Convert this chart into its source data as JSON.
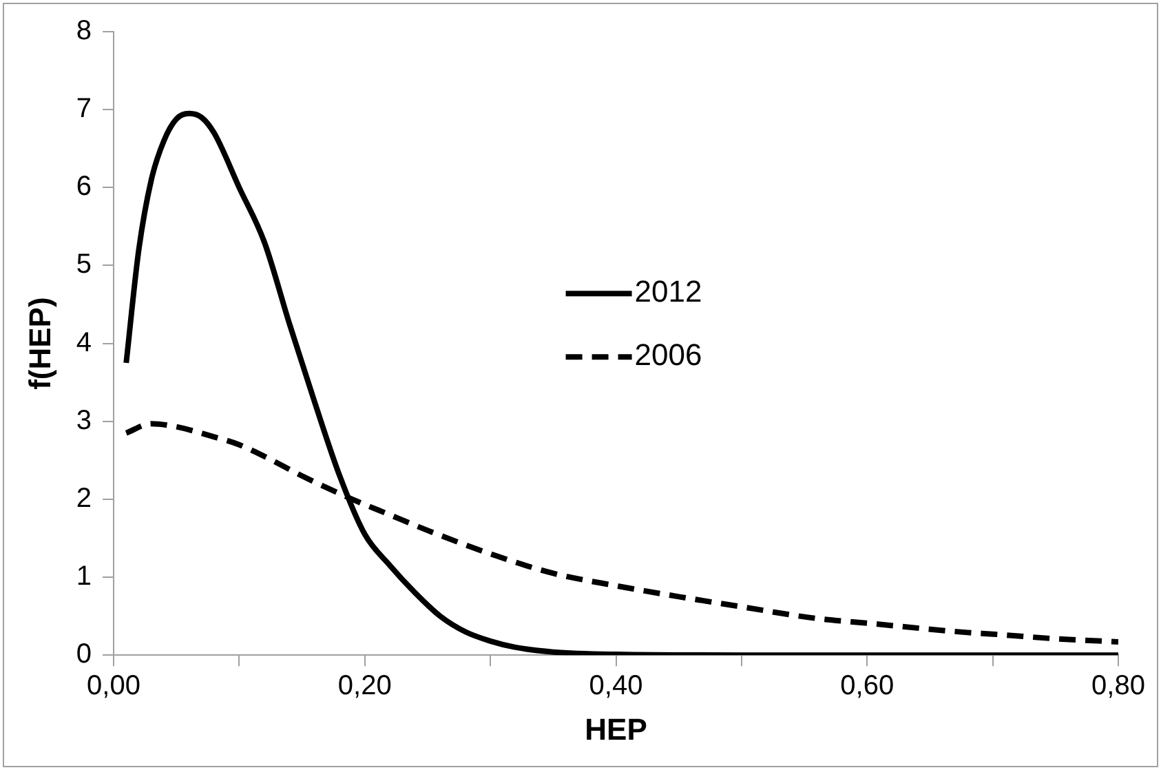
{
  "chart_data": {
    "type": "line",
    "xlabel": "HEP",
    "ylabel": "f(HEP)",
    "xlim": [
      0,
      0.8
    ],
    "xticks": [
      {
        "value": 0,
        "label": "0,00"
      },
      {
        "value": 0.1,
        "label": null
      },
      {
        "value": 0.2,
        "label": "0,20"
      },
      {
        "value": 0.3,
        "label": null
      },
      {
        "value": 0.4,
        "label": "0,40"
      },
      {
        "value": 0.5,
        "label": null
      },
      {
        "value": 0.6,
        "label": "0,60"
      },
      {
        "value": 0.7,
        "label": null
      },
      {
        "value": 0.8,
        "label": "0,80"
      }
    ],
    "ylim": [
      0,
      8
    ],
    "yticks": [
      0,
      1,
      2,
      3,
      4,
      5,
      6,
      7,
      8
    ],
    "grid": false,
    "legend": "center",
    "marker": "none",
    "series": [
      {
        "name": "2012",
        "color": "#000000",
        "line_style": "solid",
        "x": [
          0.01,
          0.02,
          0.03,
          0.04,
          0.05,
          0.06,
          0.07,
          0.08,
          0.1,
          0.12,
          0.14,
          0.16,
          0.18,
          0.2,
          0.22,
          0.24,
          0.26,
          0.28,
          0.3,
          0.32,
          0.35,
          0.4,
          0.5,
          0.8
        ],
        "values": [
          3.75,
          5.2,
          6.1,
          6.6,
          6.88,
          6.95,
          6.9,
          6.7,
          6.0,
          5.3,
          4.25,
          3.25,
          2.3,
          1.55,
          1.15,
          0.8,
          0.5,
          0.3,
          0.18,
          0.1,
          0.04,
          0.01,
          0,
          0
        ]
      },
      {
        "name": "2006",
        "color": "#000000",
        "line_style": "dashed",
        "x": [
          0.01,
          0.03,
          0.05,
          0.08,
          0.1,
          0.12,
          0.15,
          0.19,
          0.22,
          0.25,
          0.3,
          0.35,
          0.4,
          0.45,
          0.5,
          0.56,
          0.6,
          0.68,
          0.7,
          0.75,
          0.8
        ],
        "values": [
          2.85,
          2.97,
          2.93,
          2.8,
          2.7,
          2.55,
          2.3,
          2.0,
          1.8,
          1.6,
          1.3,
          1.05,
          0.89,
          0.75,
          0.62,
          0.47,
          0.41,
          0.29,
          0.27,
          0.21,
          0.17
        ]
      }
    ]
  }
}
